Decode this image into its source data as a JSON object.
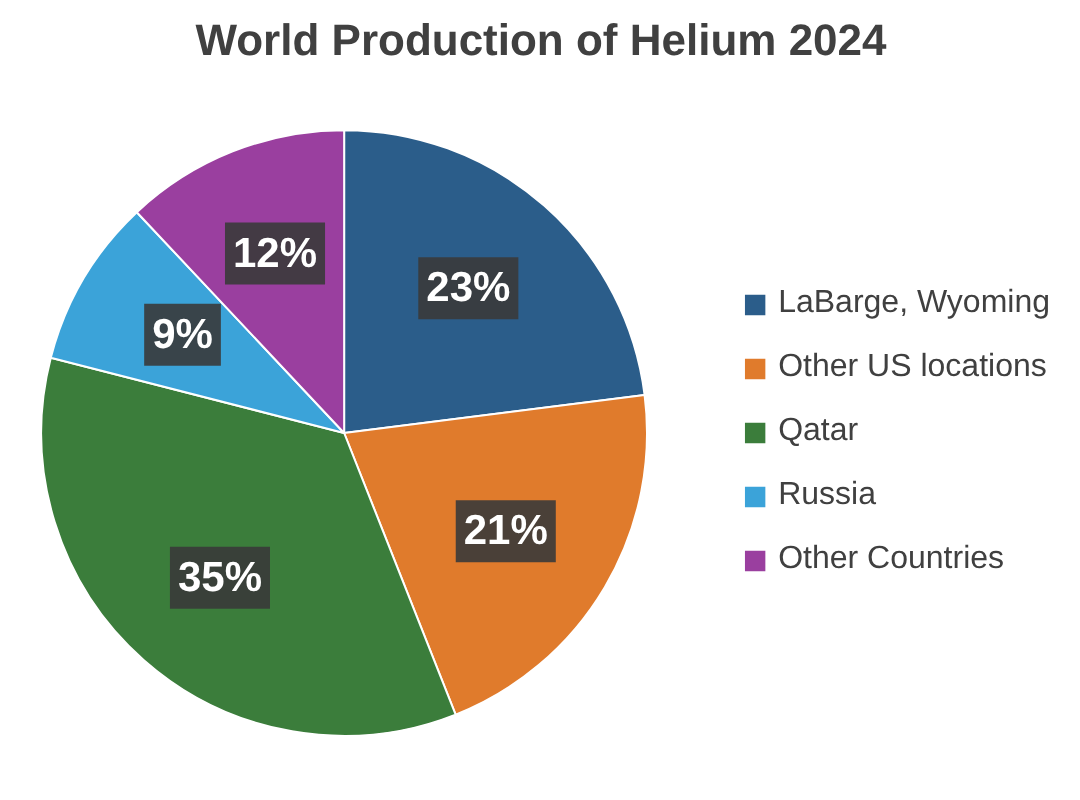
{
  "chart_data": {
    "type": "pie",
    "title": "World Production of Helium 2024",
    "categories": [
      "LaBarge, Wyoming",
      "Other US locations",
      "Qatar",
      "Russia",
      "Other Countries"
    ],
    "values": [
      23,
      21,
      35,
      9,
      12
    ],
    "colors": [
      "#2b5d8a",
      "#e07b2c",
      "#3b7d3b",
      "#3ba3d9",
      "#9a3f9f"
    ],
    "value_labels": [
      "23%",
      "21%",
      "35%",
      "9%",
      "12%"
    ],
    "legend": "right"
  }
}
